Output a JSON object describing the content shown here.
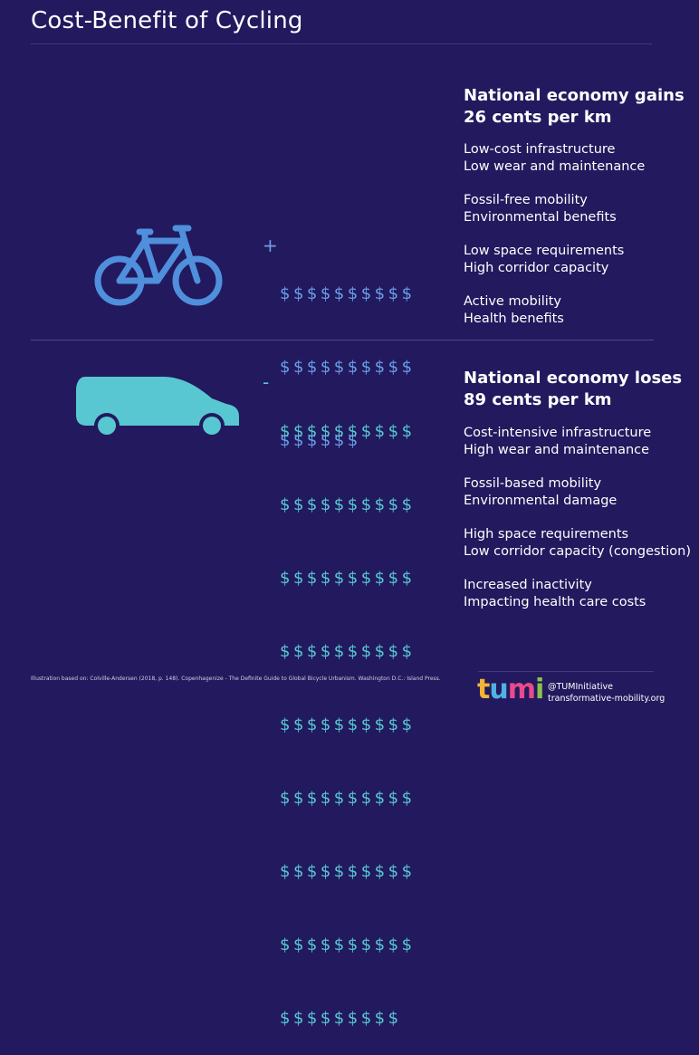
{
  "title": "Cost-Benefit of Cycling",
  "bike": {
    "heading_line1": "National economy gains",
    "heading_line2": "26 cents per km",
    "sign": "+",
    "dollar_rows": [
      "$$$$$$$$$$",
      "$$$$$$$$$$",
      "$$$$$$"
    ],
    "dollar_color": "#6b9ee6",
    "icon": "bicycle-icon",
    "items": [
      [
        "Low-cost infrastructure",
        "Low wear and maintenance"
      ],
      [
        "Fossil-free mobility",
        "Environmental benefits"
      ],
      [
        "Low space requirements",
        "High corridor capacity"
      ],
      [
        "Active mobility",
        "Health benefits"
      ]
    ]
  },
  "car": {
    "heading_line1": "National economy loses",
    "heading_line2": "89 cents per km",
    "sign": "-",
    "dollar_rows": [
      "$$$$$$$$$$",
      "$$$$$$$$$$",
      "$$$$$$$$$$",
      "$$$$$$$$$$",
      "$$$$$$$$$$",
      "$$$$$$$$$$",
      "$$$$$$$$$$",
      "$$$$$$$$$$",
      "$$$$$$$$$"
    ],
    "dollar_color": "#58c7d2",
    "icon": "car-icon",
    "items": [
      [
        "Cost-intensive infrastructure",
        "High wear and maintenance"
      ],
      [
        "Fossil-based mobility",
        "Environmental damage"
      ],
      [
        "High space requirements",
        "Low corridor capacity (congestion)"
      ],
      [
        "Increased inactivity",
        "Impacting health care costs"
      ]
    ]
  },
  "footer": {
    "footnote": "Illustration based on: Colville-Andersen (2018, p. 148). Copenhagenize - The Definite Guide to Global Bicycle Urbanism. Washington D.C.: Island Press.",
    "logo_letters": [
      "t",
      "u",
      "m",
      "i"
    ],
    "handle": "@TUMInitiative",
    "website": "transformative-mobility.org"
  },
  "colors": {
    "background": "#22195e",
    "bike_icon": "#4f8fdc",
    "car_icon": "#58c7d2"
  }
}
